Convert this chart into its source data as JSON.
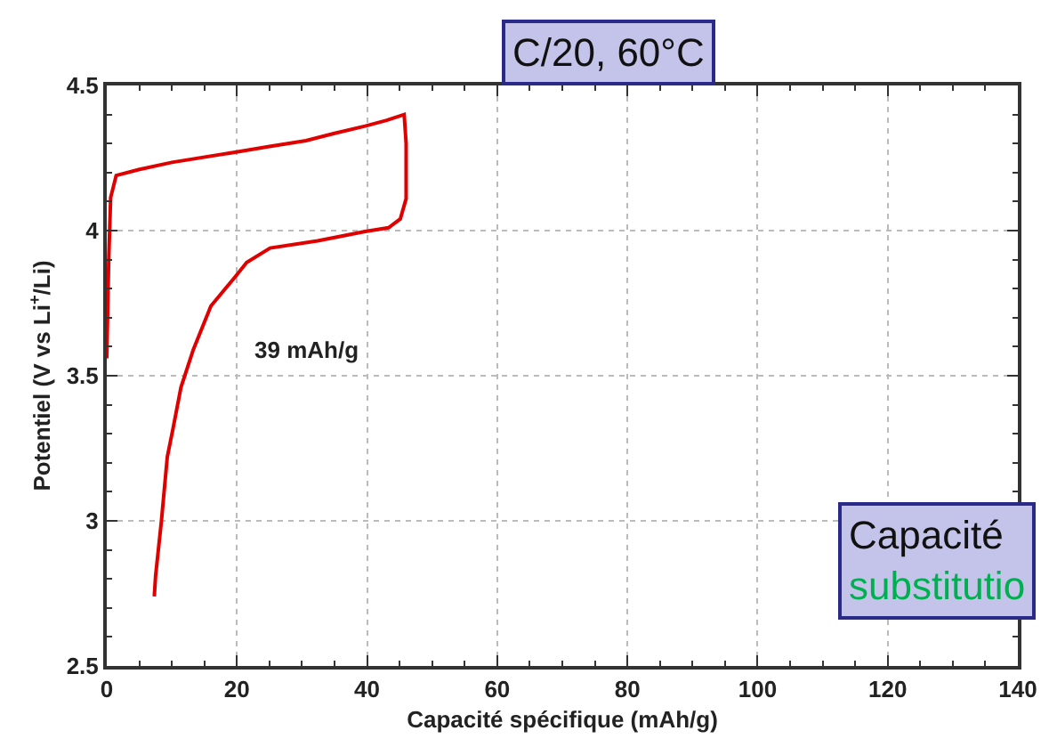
{
  "chart_data": {
    "type": "line",
    "xlabel": "Capacité spécifique (mAh/g)",
    "ylabel": "Potentiel (V vs Li$^{+}$/Li)",
    "annotations": [
      "C/20, 60°C",
      "39 mAh/g",
      "Capacité\nsubstitutio"
    ],
    "series": [
      {
        "color": "#e00000",
        "x": [
          0,
          0.3,
          0.6,
          1.45,
          4.9,
          10,
          19.7,
          25,
          30.6,
          35,
          39.7,
          43,
          45.7,
          46,
          46,
          45.1,
          43.3,
          39.7,
          32.4,
          25.1,
          21.5,
          19.7,
          16,
          13.3,
          11.4,
          10.2,
          9.3,
          8.4,
          7.5,
          7.3
        ],
        "values": [
          3.56,
          3.9,
          4.114,
          4.19,
          4.21,
          4.235,
          4.27,
          4.29,
          4.31,
          4.335,
          4.36,
          4.38,
          4.4,
          4.3,
          4.11,
          4.04,
          4.01,
          3.997,
          3.965,
          3.94,
          3.89,
          3.84,
          3.74,
          3.59,
          3.46,
          3.32,
          3.22,
          3.0,
          2.81,
          2.74
        ]
      }
    ],
    "xlim": [
      0,
      140
    ],
    "xticks": [
      0,
      20,
      40,
      60,
      80,
      100,
      120,
      140
    ],
    "ylim": [
      2.5,
      4.5
    ],
    "yticks": [
      2.5,
      3,
      3.5,
      4,
      4.5
    ],
    "grid": true,
    "marker": "none",
    "line_style": "solid"
  }
}
